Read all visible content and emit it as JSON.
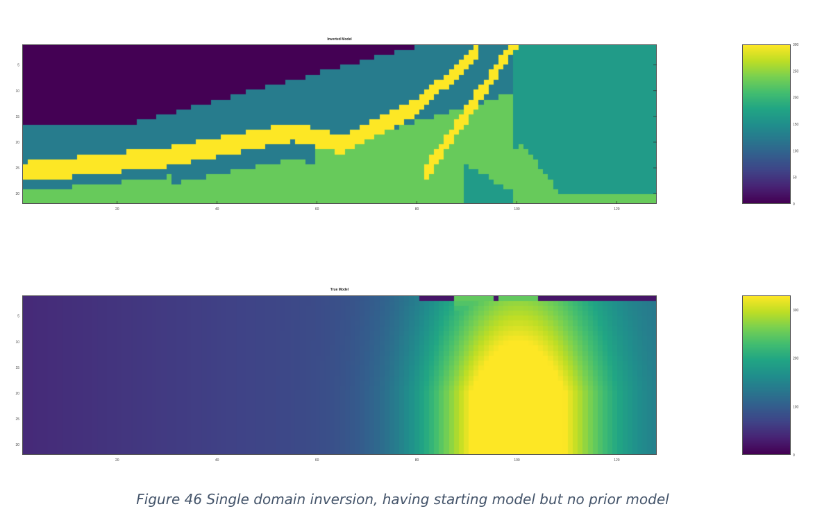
{
  "figure_caption": "Figure 46 Single domain inversion, having starting model but no prior model",
  "chart_data": [
    {
      "type": "heatmap",
      "title": "Inverted Model",
      "colormap": "viridis",
      "x_range": [
        1,
        128
      ],
      "y_range": [
        1,
        32
      ],
      "y_reversed": true,
      "x_ticks": [
        20,
        40,
        60,
        80,
        100,
        120
      ],
      "y_ticks": [
        5,
        10,
        15,
        20,
        25,
        30
      ],
      "clim": [
        0,
        300
      ],
      "colorbar_ticks": [
        0,
        50,
        100,
        150,
        200,
        250,
        300
      ],
      "layers": [
        {
          "value": 0,
          "description": "top-left low velocity region"
        },
        {
          "value": 125,
          "description": "dipping layer band"
        },
        {
          "value": 300,
          "description": "thin high velocity dipping bands"
        },
        {
          "value": 165,
          "description": "right region"
        },
        {
          "value": 230,
          "description": "bottom region"
        }
      ]
    },
    {
      "type": "heatmap",
      "title": "True Model",
      "colormap": "viridis",
      "x_range": [
        1,
        128
      ],
      "y_range": [
        1,
        32
      ],
      "y_reversed": true,
      "x_ticks": [
        20,
        40,
        60,
        80,
        100,
        120
      ],
      "y_ticks": [
        5,
        10,
        15,
        20,
        25,
        30
      ],
      "clim": [
        0,
        330
      ],
      "colorbar_ticks": [
        0,
        100,
        200,
        300
      ],
      "low_value_left": 60,
      "peak_value": 330,
      "peak_center_x": 100
    }
  ]
}
